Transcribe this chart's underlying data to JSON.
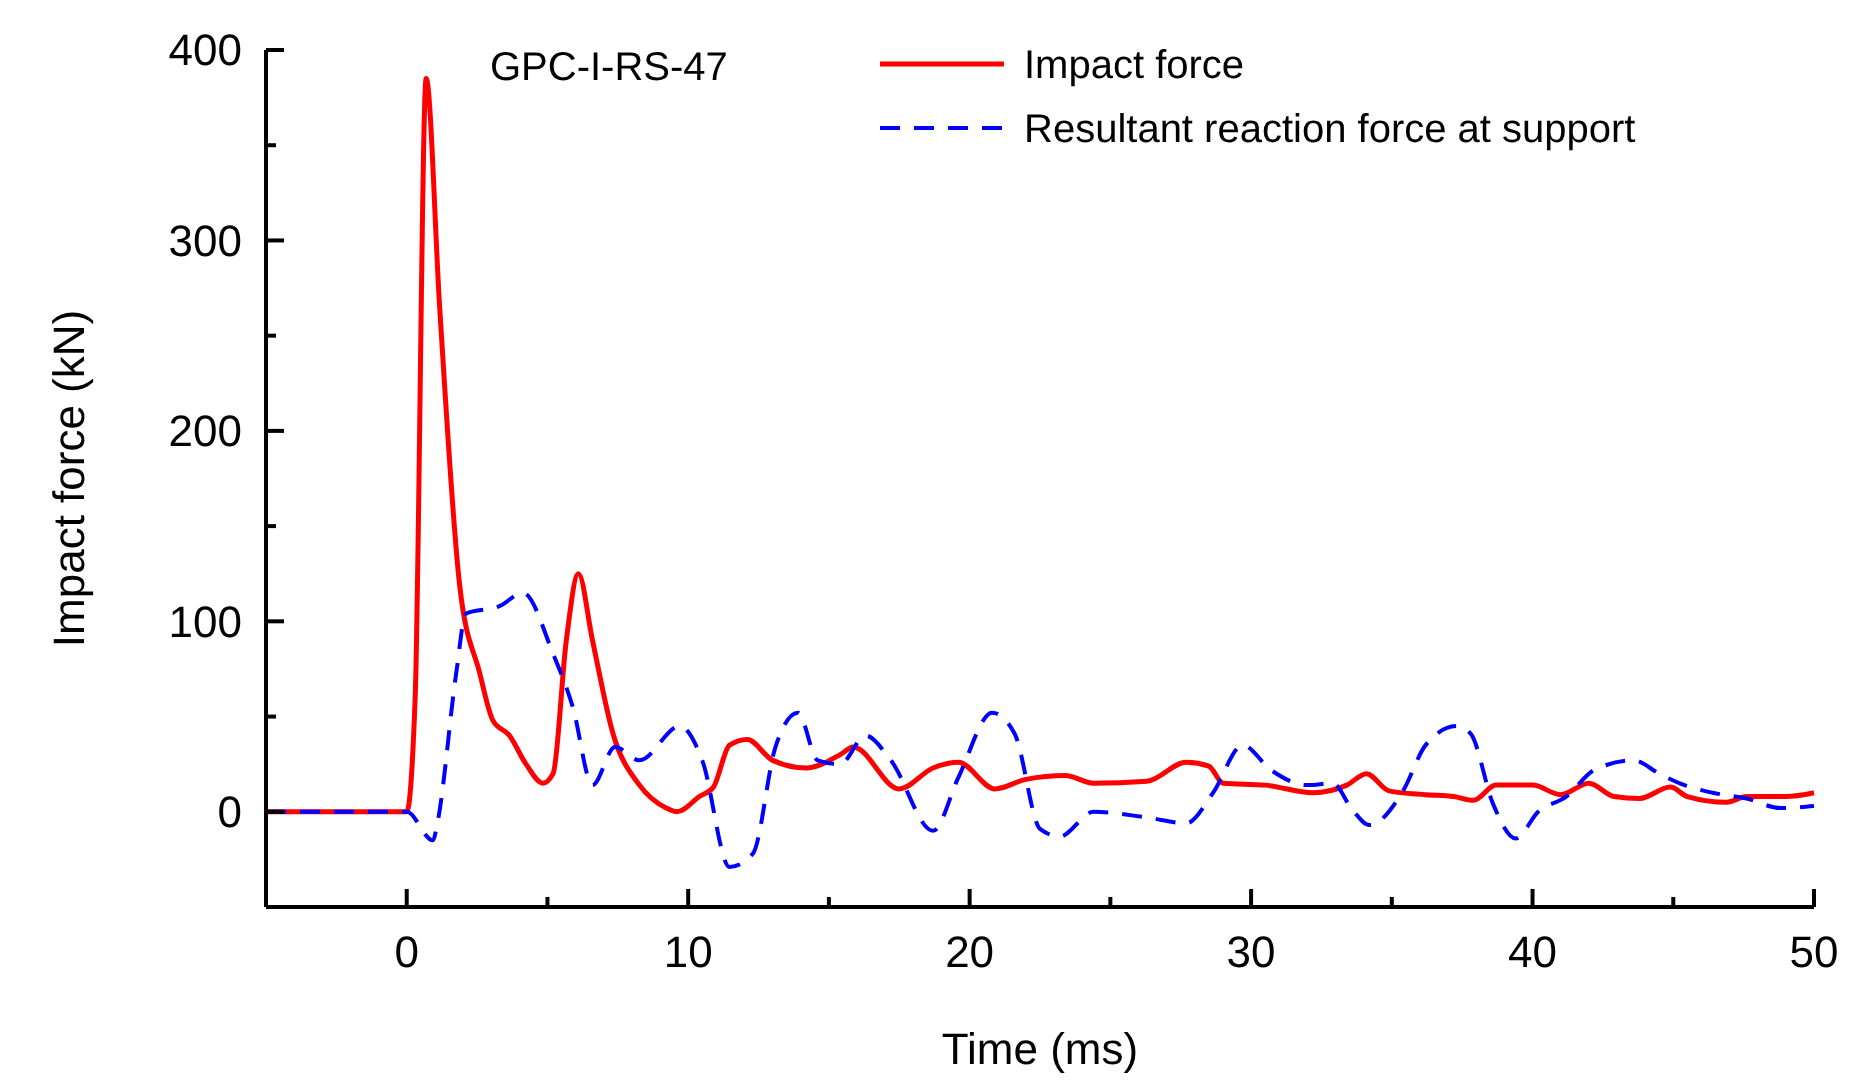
{
  "chart_data": {
    "type": "line",
    "xlabel": "Time (ms)",
    "ylabel": "Impact force (kN)",
    "annotations": [
      "GPC-I-RS-47"
    ],
    "xlim": [
      -5,
      50
    ],
    "xticks": [
      0,
      {
        "value": 5,
        "label": null
      },
      10,
      {
        "value": 15,
        "label": null
      },
      20,
      {
        "value": 25,
        "label": null
      },
      30,
      {
        "value": 35,
        "label": null
      },
      40,
      {
        "value": 45,
        "label": null
      },
      50
    ],
    "ylim": [
      -50,
      400
    ],
    "yticks": [
      {
        "value": -50,
        "label": null
      },
      0,
      {
        "value": 50,
        "label": null
      },
      100,
      {
        "value": 150,
        "label": null
      },
      200,
      {
        "value": 250,
        "label": null
      },
      300,
      {
        "value": 350,
        "label": null
      },
      400
    ],
    "grid": false,
    "legend": "top right",
    "series": [
      {
        "name": "Impact force",
        "color": "#ff0000",
        "line_style": "solid",
        "x": [
          -5,
          0,
          0.3,
          0.69,
          1.17,
          1.88,
          2.59,
          3.06,
          3.65,
          4.24,
          4.84,
          5.2,
          5.67,
          6.1,
          6.6,
          7.33,
          8.27,
          9.22,
          9.6,
          10.4,
          10.9,
          11.47,
          12.1,
          13.0,
          14.2,
          15.4,
          15.86,
          17.5,
          18.7,
          19.6,
          20.9,
          22.0,
          23.4,
          24.4,
          26.3,
          27.7,
          28.5,
          29.0,
          30.5,
          32.2,
          33.4,
          34.1,
          34.9,
          36.2,
          37.2,
          37.9,
          38.7,
          40.0,
          41.0,
          42.0,
          42.9,
          43.8,
          44.9,
          45.5,
          46.9,
          47.6,
          49.0,
          50
        ],
        "values": [
          0,
          0,
          60,
          385,
          265,
          119,
          73,
          48,
          40,
          25,
          15,
          20,
          90,
          125,
          90,
          41,
          14,
          2,
          0,
          8,
          13,
          35,
          38,
          27,
          23,
          30,
          34,
          12,
          23,
          26,
          12,
          17,
          19,
          15,
          16,
          26,
          24,
          15,
          14,
          10,
          14,
          20,
          11,
          9,
          8,
          6,
          14,
          14,
          9,
          15,
          8,
          7,
          13,
          8,
          5,
          8,
          8,
          10
        ]
      },
      {
        "name": "Resultant reaction force at support",
        "color": "#0000ff",
        "line_style": "dashed",
        "x": [
          -5,
          0,
          0.93,
          1.1,
          1.76,
          2.1,
          3.3,
          4.13,
          5.2,
          5.9,
          6.6,
          7.4,
          8.27,
          9.7,
          10.5,
          11.47,
          12.3,
          13.1,
          13.9,
          14.6,
          15.4,
          16.3,
          17.2,
          18.7,
          19.6,
          20.8,
          21.6,
          22.5,
          23.2,
          24.4,
          26.3,
          27.7,
          28.65,
          29.7,
          30.7,
          32.0,
          32.9,
          33.6,
          34.2,
          35.4,
          36.2,
          37.3,
          37.8,
          38.6,
          39.4,
          40.2,
          41.2,
          42.2,
          43.6,
          44.5,
          45.4,
          46.4,
          47.6,
          48.8,
          50
        ],
        "values": [
          0,
          0,
          -15,
          -5,
          73,
          104,
          108,
          115,
          83,
          55,
          14,
          34,
          27,
          45,
          27,
          -29,
          -22,
          34,
          52,
          27,
          25,
          40,
          27,
          -10,
          18,
          52,
          41,
          -9,
          -13,
          0,
          -3,
          -6,
          10,
          35,
          22,
          14,
          15,
          1,
          -7,
          11,
          35,
          45,
          41,
          4,
          -14,
          0,
          8,
          22,
          27,
          20,
          14,
          10,
          7,
          2,
          3
        ]
      }
    ]
  }
}
